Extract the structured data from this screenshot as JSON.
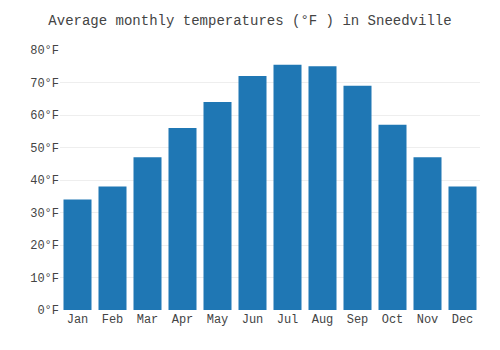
{
  "chart_data": {
    "type": "bar",
    "title": "Average monthly temperatures (°F ) in Sneedville",
    "categories": [
      "Jan",
      "Feb",
      "Mar",
      "Apr",
      "May",
      "Jun",
      "Jul",
      "Aug",
      "Sep",
      "Oct",
      "Nov",
      "Dec"
    ],
    "values": [
      34,
      38,
      47,
      56,
      64,
      72,
      75.5,
      75,
      69,
      57,
      47,
      38
    ],
    "ylim": [
      0,
      80
    ],
    "yticks": [
      {
        "value": 0,
        "label": "0°F"
      },
      {
        "value": 10,
        "label": "10°F"
      },
      {
        "value": 20,
        "label": "20°F"
      },
      {
        "value": 30,
        "label": "30°F"
      },
      {
        "value": 40,
        "label": "40°F"
      },
      {
        "value": 50,
        "label": "50°F"
      },
      {
        "value": 60,
        "label": "60°F"
      },
      {
        "value": 70,
        "label": "70°F"
      },
      {
        "value": 80,
        "label": "80°F"
      }
    ],
    "grid": true
  }
}
